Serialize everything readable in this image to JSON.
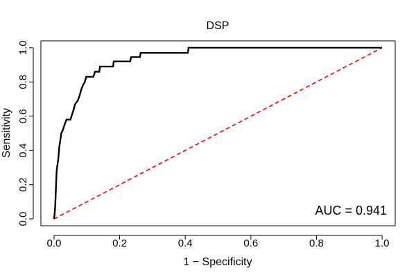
{
  "chart_data": {
    "type": "line",
    "title": "DSP",
    "xlabel": "1 − Specificity",
    "ylabel": "Sensitivity",
    "xlim": [
      -0.04,
      1.04
    ],
    "ylim": [
      -0.04,
      1.04
    ],
    "x_ticks": [
      0.0,
      0.2,
      0.4,
      0.6,
      0.8,
      1.0
    ],
    "y_ticks": [
      0.0,
      0.2,
      0.4,
      0.6,
      0.8,
      1.0
    ],
    "x_tick_labels": [
      "0.0",
      "0.2",
      "0.4",
      "0.6",
      "0.8",
      "1.0"
    ],
    "y_tick_labels": [
      "0.0",
      "0.2",
      "0.4",
      "0.6",
      "0.8",
      "1.0"
    ],
    "grid": false,
    "annotation": "AUC = 0.941",
    "colors": {
      "roc": "#000000",
      "diagonal": "#ff0000"
    },
    "series": [
      {
        "style": "solid",
        "points": [
          [
            0.0,
            0.0
          ],
          [
            0.002,
            0.03
          ],
          [
            0.004,
            0.09
          ],
          [
            0.006,
            0.19
          ],
          [
            0.008,
            0.28
          ],
          [
            0.01,
            0.31
          ],
          [
            0.013,
            0.35
          ],
          [
            0.016,
            0.42
          ],
          [
            0.02,
            0.47
          ],
          [
            0.022,
            0.5
          ],
          [
            0.027,
            0.52
          ],
          [
            0.032,
            0.55
          ],
          [
            0.038,
            0.58
          ],
          [
            0.05,
            0.58
          ],
          [
            0.055,
            0.61
          ],
          [
            0.06,
            0.64
          ],
          [
            0.064,
            0.67
          ],
          [
            0.072,
            0.69
          ],
          [
            0.078,
            0.72
          ],
          [
            0.082,
            0.75
          ],
          [
            0.088,
            0.78
          ],
          [
            0.094,
            0.8
          ],
          [
            0.098,
            0.83
          ],
          [
            0.12,
            0.83
          ],
          [
            0.125,
            0.86
          ],
          [
            0.138,
            0.86
          ],
          [
            0.14,
            0.89
          ],
          [
            0.18,
            0.89
          ],
          [
            0.182,
            0.92
          ],
          [
            0.232,
            0.92
          ],
          [
            0.235,
            0.945
          ],
          [
            0.262,
            0.945
          ],
          [
            0.264,
            0.97
          ],
          [
            0.408,
            0.97
          ],
          [
            0.41,
            1.0
          ],
          [
            1.0,
            1.0
          ]
        ]
      },
      {
        "style": "dashed",
        "points": [
          [
            0,
            0
          ],
          [
            1,
            1
          ]
        ]
      }
    ]
  }
}
